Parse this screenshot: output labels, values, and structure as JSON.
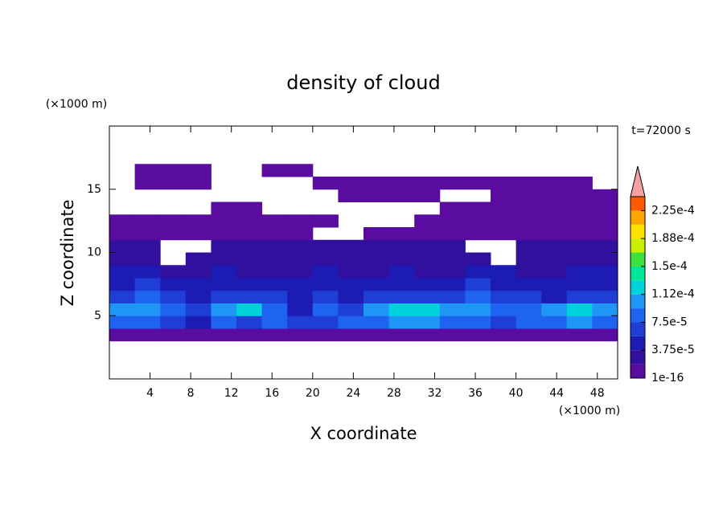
{
  "chart_data": {
    "type": "contour",
    "title": "density of cloud",
    "x_label": "X coordinate",
    "y_label": "Z coordinate",
    "x_unit": "(×1000 m)",
    "y_unit": "(×1000 m)",
    "annotation": "t=72000 s",
    "xlim": [
      0,
      50
    ],
    "ylim": [
      0,
      20
    ],
    "xticks": [
      4,
      8,
      12,
      16,
      20,
      24,
      28,
      32,
      36,
      40,
      44,
      48
    ],
    "yticks": [
      5,
      10,
      15
    ],
    "levels": [
      1e-16,
      1.875e-05,
      3.75e-05,
      5.625e-05,
      7.5e-05,
      9.375e-05,
      0.0001125,
      0.00013125,
      0.00015,
      0.00016875,
      0.0001875,
      0.00020625,
      0.000225,
      0.00024375
    ],
    "colors": [
      "#5a0ca0",
      "#32109e",
      "#1c1cb4",
      "#1e3ed6",
      "#1e64f0",
      "#1e96f5",
      "#00d2dc",
      "#00e696",
      "#3ce13c",
      "#c8f000",
      "#ffe100",
      "#ffa500",
      "#ff5a00"
    ],
    "extend_color": "#f4a0a0",
    "colorbar_ticks": [
      1e-16,
      {
        "value": 3.75e-05,
        "label": "3.75e-5"
      },
      {
        "value": 7.5e-05,
        "label": "7.5e-5"
      },
      {
        "value": 0.0001125,
        "label": "1.12e-4"
      },
      {
        "value": 0.00015,
        "label": "1.5e-4"
      },
      {
        "value": 0.0001875,
        "label": "1.88e-4"
      },
      {
        "value": 0.000225,
        "label": "2.25e-4"
      }
    ],
    "x_edges": [
      0,
      2.5,
      5,
      7.5,
      10,
      12.5,
      15,
      17.5,
      20,
      22.5,
      25,
      27.5,
      30,
      32.5,
      35,
      37.5,
      40,
      42.5,
      45,
      47.5,
      50
    ],
    "z_edges": [
      0,
      1,
      2,
      3,
      4,
      5,
      6,
      7,
      8,
      9,
      10,
      11,
      12,
      13,
      14,
      15,
      16,
      17,
      18,
      19,
      20
    ],
    "z": [
      [
        null,
        null,
        null,
        null,
        null,
        null,
        null,
        null,
        null,
        null,
        null,
        null,
        null,
        null,
        null,
        null,
        null,
        null,
        null,
        null
      ],
      [
        null,
        null,
        null,
        null,
        null,
        null,
        null,
        null,
        null,
        null,
        null,
        null,
        null,
        null,
        null,
        null,
        null,
        null,
        null,
        null
      ],
      [
        null,
        null,
        null,
        null,
        null,
        null,
        null,
        null,
        null,
        null,
        null,
        null,
        null,
        null,
        null,
        null,
        null,
        null,
        null,
        null
      ],
      [
        1e-05,
        1e-05,
        1e-05,
        1e-05,
        1e-05,
        1e-05,
        1e-05,
        1e-05,
        1e-05,
        1e-05,
        1e-05,
        1e-05,
        1e-05,
        1e-05,
        1e-05,
        1e-05,
        1e-05,
        1e-05,
        1e-05,
        1e-05
      ],
      [
        8e-05,
        9e-05,
        7e-05,
        5e-05,
        9e-05,
        6e-05,
        8e-05,
        6e-05,
        7e-05,
        8e-05,
        8e-05,
        0.0001,
        0.00011,
        9e-05,
        8e-05,
        7e-05,
        9e-05,
        9e-05,
        0.0001,
        9e-05
      ],
      [
        0.0001,
        0.00011,
        9e-05,
        7e-05,
        0.00011,
        0.00012,
        9e-05,
        5e-05,
        8e-05,
        7e-05,
        0.0001,
        0.00013,
        0.00012,
        0.0001,
        0.00011,
        8e-05,
        9e-05,
        0.0001,
        0.00012,
        0.0001
      ],
      [
        7e-05,
        8e-05,
        6e-05,
        5e-05,
        7e-05,
        7e-05,
        6e-05,
        4e-05,
        6e-05,
        5e-05,
        6e-05,
        7e-05,
        6e-05,
        7e-05,
        8e-05,
        7e-05,
        6e-05,
        5e-05,
        6e-05,
        7e-05
      ],
      [
        5e-05,
        6e-05,
        4e-05,
        4e-05,
        5e-05,
        5e-05,
        4e-05,
        4e-05,
        5e-05,
        4e-05,
        4e-05,
        5e-05,
        4e-05,
        5e-05,
        6e-05,
        5e-05,
        4e-05,
        4e-05,
        5e-05,
        5e-05
      ],
      [
        4e-05,
        4e-05,
        3e-05,
        3e-05,
        4e-05,
        3e-05,
        3e-05,
        3e-05,
        4e-05,
        3e-05,
        3e-05,
        4e-05,
        3e-05,
        3e-05,
        4e-05,
        4e-05,
        3e-05,
        3e-05,
        4e-05,
        4e-05
      ],
      [
        3e-05,
        2e-05,
        null,
        2e-05,
        2e-05,
        3e-05,
        2e-05,
        3e-05,
        2e-05,
        2e-05,
        2e-05,
        2e-05,
        3e-05,
        2e-05,
        2e-05,
        null,
        2e-05,
        2e-05,
        2e-05,
        3e-05
      ],
      [
        2e-05,
        2e-05,
        null,
        null,
        2e-05,
        2e-05,
        2e-05,
        2e-05,
        2e-05,
        2e-05,
        2e-05,
        2e-05,
        2e-05,
        2e-05,
        null,
        null,
        2e-05,
        2e-05,
        2e-05,
        2e-05
      ],
      [
        1e-05,
        1e-05,
        1e-05,
        1e-05,
        1e-05,
        1e-05,
        1e-05,
        1e-05,
        null,
        null,
        1e-05,
        1e-05,
        1e-05,
        1e-05,
        1e-05,
        1e-05,
        1e-05,
        1e-05,
        1e-05,
        1e-05
      ],
      [
        1e-05,
        1e-05,
        1e-05,
        1e-05,
        1e-05,
        1e-05,
        1e-05,
        1e-05,
        1e-05,
        null,
        null,
        null,
        1e-05,
        1e-05,
        1e-05,
        1e-05,
        1e-05,
        1e-05,
        1e-05,
        1e-05
      ],
      [
        null,
        null,
        null,
        null,
        1e-05,
        1e-05,
        null,
        null,
        null,
        null,
        null,
        null,
        null,
        1e-05,
        1e-05,
        1e-05,
        1e-05,
        1e-05,
        1e-05,
        1e-05
      ],
      [
        null,
        null,
        null,
        null,
        null,
        null,
        null,
        null,
        null,
        1e-05,
        1e-05,
        1e-05,
        1e-05,
        null,
        null,
        1e-05,
        1e-05,
        1e-05,
        1e-05,
        1e-05
      ],
      [
        null,
        1e-05,
        1e-05,
        1e-05,
        null,
        null,
        null,
        null,
        1e-05,
        1e-05,
        1e-05,
        1e-05,
        1e-05,
        1e-05,
        1e-05,
        1e-05,
        1e-05,
        1e-05,
        1e-05,
        null
      ],
      [
        null,
        1e-05,
        1e-05,
        1e-05,
        null,
        null,
        1e-05,
        1e-05,
        null,
        null,
        null,
        null,
        null,
        null,
        null,
        null,
        null,
        null,
        null,
        null
      ],
      [
        null,
        null,
        null,
        null,
        null,
        null,
        null,
        null,
        null,
        null,
        null,
        null,
        null,
        null,
        null,
        null,
        null,
        null,
        null,
        null
      ],
      [
        null,
        null,
        null,
        null,
        null,
        null,
        null,
        null,
        null,
        null,
        null,
        null,
        null,
        null,
        null,
        null,
        null,
        null,
        null,
        null
      ],
      [
        null,
        null,
        null,
        null,
        null,
        null,
        null,
        null,
        null,
        null,
        null,
        null,
        null,
        null,
        null,
        null,
        null,
        null,
        null,
        null
      ]
    ]
  }
}
